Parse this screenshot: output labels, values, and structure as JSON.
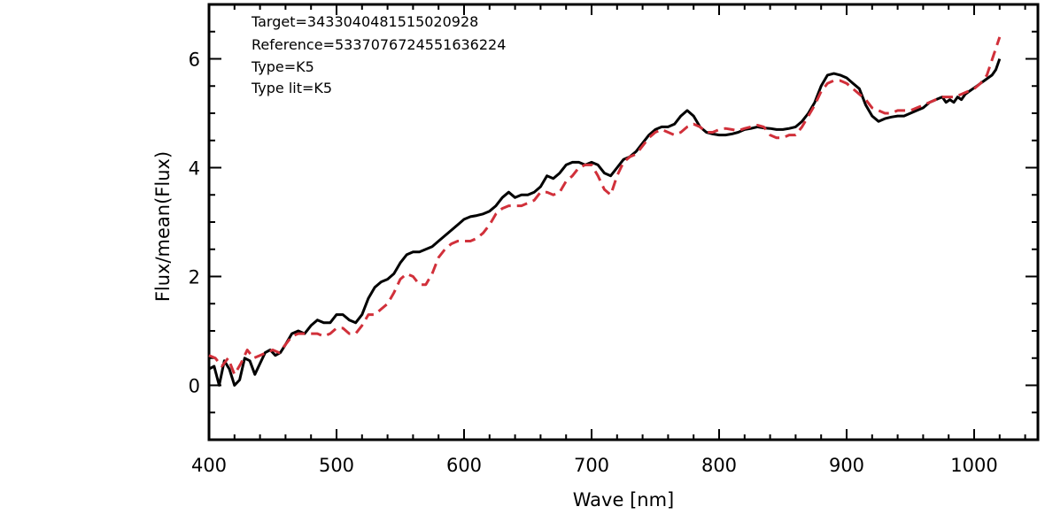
{
  "chart_data": {
    "type": "line",
    "xlabel": "Wave [nm]",
    "ylabel": "Flux/mean(Flux)",
    "xlim": [
      400,
      1050
    ],
    "ylim": [
      -1,
      7
    ],
    "x_ticks": [
      400,
      500,
      600,
      700,
      800,
      900,
      1000
    ],
    "y_ticks": [
      0,
      2,
      4,
      6
    ],
    "x_tick_labels": [
      "400",
      "500",
      "600",
      "700",
      "800",
      "900",
      "1000"
    ],
    "y_tick_labels": [
      "0",
      "2",
      "4",
      "6"
    ],
    "annotations": [
      "Target=3433040481515020928",
      "Reference=5337076724551636224",
      "Type=K5",
      "Type lit=K5"
    ],
    "grid": false,
    "series": [
      {
        "style": "solid",
        "color": "#000000",
        "points": [
          [
            400,
            0.3
          ],
          [
            404,
            0.35
          ],
          [
            408,
            0.0
          ],
          [
            412,
            0.45
          ],
          [
            416,
            0.3
          ],
          [
            420,
            0.0
          ],
          [
            424,
            0.1
          ],
          [
            428,
            0.5
          ],
          [
            432,
            0.45
          ],
          [
            436,
            0.2
          ],
          [
            440,
            0.4
          ],
          [
            444,
            0.6
          ],
          [
            448,
            0.65
          ],
          [
            452,
            0.55
          ],
          [
            456,
            0.6
          ],
          [
            460,
            0.75
          ],
          [
            465,
            0.95
          ],
          [
            470,
            1.0
          ],
          [
            475,
            0.95
          ],
          [
            480,
            1.1
          ],
          [
            485,
            1.2
          ],
          [
            490,
            1.15
          ],
          [
            495,
            1.15
          ],
          [
            500,
            1.3
          ],
          [
            505,
            1.3
          ],
          [
            510,
            1.2
          ],
          [
            515,
            1.15
          ],
          [
            520,
            1.3
          ],
          [
            525,
            1.6
          ],
          [
            530,
            1.8
          ],
          [
            535,
            1.9
          ],
          [
            540,
            1.95
          ],
          [
            545,
            2.05
          ],
          [
            550,
            2.25
          ],
          [
            555,
            2.4
          ],
          [
            560,
            2.45
          ],
          [
            565,
            2.45
          ],
          [
            570,
            2.5
          ],
          [
            575,
            2.55
          ],
          [
            580,
            2.65
          ],
          [
            585,
            2.75
          ],
          [
            590,
            2.85
          ],
          [
            595,
            2.95
          ],
          [
            600,
            3.05
          ],
          [
            605,
            3.1
          ],
          [
            610,
            3.12
          ],
          [
            615,
            3.15
          ],
          [
            620,
            3.2
          ],
          [
            625,
            3.3
          ],
          [
            630,
            3.45
          ],
          [
            635,
            3.55
          ],
          [
            640,
            3.45
          ],
          [
            645,
            3.5
          ],
          [
            650,
            3.5
          ],
          [
            655,
            3.55
          ],
          [
            660,
            3.65
          ],
          [
            665,
            3.85
          ],
          [
            670,
            3.8
          ],
          [
            675,
            3.9
          ],
          [
            680,
            4.05
          ],
          [
            685,
            4.1
          ],
          [
            690,
            4.1
          ],
          [
            695,
            4.05
          ],
          [
            700,
            4.1
          ],
          [
            705,
            4.05
          ],
          [
            710,
            3.9
          ],
          [
            715,
            3.85
          ],
          [
            720,
            4.0
          ],
          [
            725,
            4.15
          ],
          [
            730,
            4.2
          ],
          [
            735,
            4.3
          ],
          [
            740,
            4.45
          ],
          [
            745,
            4.6
          ],
          [
            750,
            4.7
          ],
          [
            755,
            4.75
          ],
          [
            760,
            4.75
          ],
          [
            765,
            4.8
          ],
          [
            770,
            4.95
          ],
          [
            775,
            5.05
          ],
          [
            780,
            4.95
          ],
          [
            785,
            4.75
          ],
          [
            790,
            4.65
          ],
          [
            795,
            4.62
          ],
          [
            800,
            4.6
          ],
          [
            805,
            4.6
          ],
          [
            810,
            4.62
          ],
          [
            815,
            4.65
          ],
          [
            820,
            4.7
          ],
          [
            825,
            4.72
          ],
          [
            830,
            4.75
          ],
          [
            835,
            4.73
          ],
          [
            840,
            4.72
          ],
          [
            845,
            4.7
          ],
          [
            850,
            4.7
          ],
          [
            855,
            4.72
          ],
          [
            860,
            4.75
          ],
          [
            865,
            4.85
          ],
          [
            870,
            5.0
          ],
          [
            875,
            5.2
          ],
          [
            880,
            5.5
          ],
          [
            885,
            5.7
          ],
          [
            890,
            5.73
          ],
          [
            895,
            5.7
          ],
          [
            900,
            5.65
          ],
          [
            905,
            5.55
          ],
          [
            910,
            5.45
          ],
          [
            915,
            5.15
          ],
          [
            920,
            4.95
          ],
          [
            925,
            4.85
          ],
          [
            930,
            4.9
          ],
          [
            935,
            4.93
          ],
          [
            940,
            4.95
          ],
          [
            945,
            4.95
          ],
          [
            950,
            5.0
          ],
          [
            955,
            5.05
          ],
          [
            960,
            5.1
          ],
          [
            965,
            5.2
          ],
          [
            970,
            5.25
          ],
          [
            975,
            5.3
          ],
          [
            978,
            5.2
          ],
          [
            981,
            5.25
          ],
          [
            984,
            5.2
          ],
          [
            987,
            5.3
          ],
          [
            990,
            5.25
          ],
          [
            993,
            5.35
          ],
          [
            996,
            5.4
          ],
          [
            999,
            5.45
          ],
          [
            1002,
            5.5
          ],
          [
            1005,
            5.55
          ],
          [
            1008,
            5.6
          ],
          [
            1011,
            5.65
          ],
          [
            1014,
            5.7
          ],
          [
            1017,
            5.8
          ],
          [
            1020,
            6.0
          ]
        ]
      },
      {
        "style": "dashed",
        "color": "#d1303a",
        "points": [
          [
            400,
            0.55
          ],
          [
            405,
            0.5
          ],
          [
            410,
            0.35
          ],
          [
            415,
            0.5
          ],
          [
            420,
            0.2
          ],
          [
            425,
            0.4
          ],
          [
            430,
            0.65
          ],
          [
            435,
            0.5
          ],
          [
            440,
            0.55
          ],
          [
            445,
            0.6
          ],
          [
            450,
            0.65
          ],
          [
            455,
            0.6
          ],
          [
            460,
            0.75
          ],
          [
            465,
            0.9
          ],
          [
            470,
            0.95
          ],
          [
            475,
            0.95
          ],
          [
            480,
            0.95
          ],
          [
            485,
            0.95
          ],
          [
            490,
            0.9
          ],
          [
            495,
            0.95
          ],
          [
            500,
            1.05
          ],
          [
            505,
            1.05
          ],
          [
            510,
            0.95
          ],
          [
            515,
            0.95
          ],
          [
            520,
            1.1
          ],
          [
            525,
            1.3
          ],
          [
            530,
            1.3
          ],
          [
            535,
            1.4
          ],
          [
            540,
            1.5
          ],
          [
            545,
            1.7
          ],
          [
            550,
            1.95
          ],
          [
            555,
            2.05
          ],
          [
            560,
            2.0
          ],
          [
            565,
            1.85
          ],
          [
            570,
            1.85
          ],
          [
            575,
            2.05
          ],
          [
            580,
            2.35
          ],
          [
            585,
            2.5
          ],
          [
            590,
            2.6
          ],
          [
            595,
            2.65
          ],
          [
            600,
            2.65
          ],
          [
            605,
            2.65
          ],
          [
            610,
            2.7
          ],
          [
            615,
            2.8
          ],
          [
            620,
            2.95
          ],
          [
            625,
            3.15
          ],
          [
            630,
            3.25
          ],
          [
            635,
            3.3
          ],
          [
            640,
            3.3
          ],
          [
            645,
            3.3
          ],
          [
            650,
            3.35
          ],
          [
            655,
            3.4
          ],
          [
            660,
            3.55
          ],
          [
            665,
            3.55
          ],
          [
            670,
            3.5
          ],
          [
            675,
            3.55
          ],
          [
            680,
            3.75
          ],
          [
            685,
            3.85
          ],
          [
            690,
            4.0
          ],
          [
            695,
            4.05
          ],
          [
            700,
            4.05
          ],
          [
            705,
            3.85
          ],
          [
            710,
            3.6
          ],
          [
            715,
            3.5
          ],
          [
            720,
            3.85
          ],
          [
            725,
            4.1
          ],
          [
            730,
            4.2
          ],
          [
            735,
            4.25
          ],
          [
            740,
            4.4
          ],
          [
            745,
            4.55
          ],
          [
            750,
            4.65
          ],
          [
            755,
            4.7
          ],
          [
            760,
            4.65
          ],
          [
            765,
            4.6
          ],
          [
            770,
            4.65
          ],
          [
            775,
            4.75
          ],
          [
            780,
            4.8
          ],
          [
            785,
            4.75
          ],
          [
            790,
            4.65
          ],
          [
            795,
            4.65
          ],
          [
            800,
            4.7
          ],
          [
            805,
            4.72
          ],
          [
            810,
            4.7
          ],
          [
            815,
            4.68
          ],
          [
            820,
            4.72
          ],
          [
            825,
            4.75
          ],
          [
            830,
            4.78
          ],
          [
            835,
            4.75
          ],
          [
            840,
            4.6
          ],
          [
            845,
            4.55
          ],
          [
            850,
            4.55
          ],
          [
            855,
            4.6
          ],
          [
            860,
            4.6
          ],
          [
            865,
            4.75
          ],
          [
            870,
            4.95
          ],
          [
            875,
            5.15
          ],
          [
            880,
            5.4
          ],
          [
            885,
            5.55
          ],
          [
            890,
            5.6
          ],
          [
            895,
            5.6
          ],
          [
            900,
            5.55
          ],
          [
            905,
            5.45
          ],
          [
            910,
            5.35
          ],
          [
            915,
            5.25
          ],
          [
            920,
            5.1
          ],
          [
            925,
            5.05
          ],
          [
            930,
            5.0
          ],
          [
            935,
            5.0
          ],
          [
            940,
            5.05
          ],
          [
            945,
            5.05
          ],
          [
            950,
            5.05
          ],
          [
            955,
            5.1
          ],
          [
            960,
            5.15
          ],
          [
            965,
            5.2
          ],
          [
            970,
            5.25
          ],
          [
            975,
            5.3
          ],
          [
            980,
            5.3
          ],
          [
            985,
            5.3
          ],
          [
            990,
            5.35
          ],
          [
            995,
            5.4
          ],
          [
            1000,
            5.45
          ],
          [
            1005,
            5.55
          ],
          [
            1010,
            5.7
          ],
          [
            1015,
            6.05
          ],
          [
            1020,
            6.4
          ]
        ]
      }
    ]
  }
}
